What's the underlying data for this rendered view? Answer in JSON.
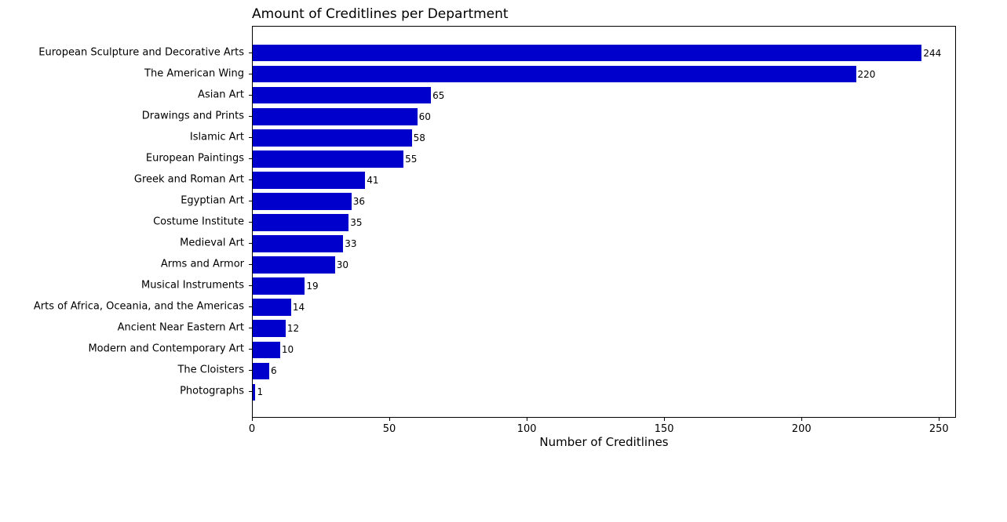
{
  "chart_data": {
    "type": "bar",
    "orientation": "horizontal",
    "title": "Amount of Creditlines per Department",
    "xlabel": "Number of Creditlines",
    "ylabel": "",
    "categories": [
      "European Sculpture and Decorative Arts",
      "The American Wing",
      "Asian Art",
      "Drawings and Prints",
      "Islamic Art",
      "European Paintings",
      "Greek and Roman Art",
      "Egyptian Art",
      "Costume Institute",
      "Medieval Art",
      "Arms and Armor",
      "Musical Instruments",
      "Arts of Africa, Oceania, and the Americas",
      "Ancient Near Eastern Art",
      "Modern and Contemporary Art",
      "The Cloisters",
      "Photographs"
    ],
    "values": [
      244,
      220,
      65,
      60,
      58,
      55,
      41,
      36,
      35,
      33,
      30,
      19,
      14,
      12,
      10,
      6,
      1
    ],
    "value_labels": [
      "244",
      "220",
      "65",
      "60",
      "58",
      "55",
      "41",
      "36",
      "35",
      "33",
      "30",
      "19",
      "14",
      "12",
      "10",
      "6",
      "1"
    ],
    "x_ticks": [
      0,
      50,
      100,
      150,
      200,
      250
    ],
    "x_tick_labels": [
      "0",
      "50",
      "100",
      "150",
      "200",
      "250"
    ],
    "xlim": [
      0,
      256.2
    ],
    "bar_color": "#0000cd",
    "axis_color": "#000000",
    "text_color": "#000000",
    "background_color": "#ffffff",
    "grid": false,
    "legend": "none",
    "title_align": "left"
  }
}
